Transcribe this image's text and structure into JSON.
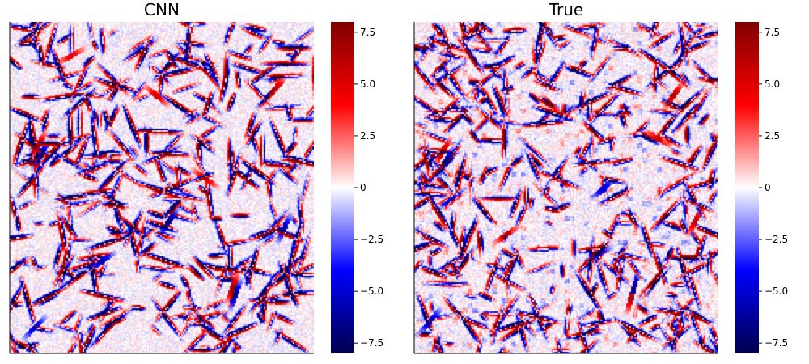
{
  "chart_data": [
    {
      "type": "heatmap",
      "title": "CNN",
      "colormap": "seismic",
      "colors": [
        "#00004d",
        "#0000ff",
        "#ffffff",
        "#ff0000",
        "#800000"
      ],
      "clim": [
        -8.0,
        8.0
      ],
      "colorbar_ticks": [
        -7.5,
        -5.0,
        -2.5,
        0,
        2.5,
        5.0,
        7.5
      ],
      "colorbar_tick_labels": [
        "−7.5",
        "−5.0",
        "−2.5",
        "0",
        "2.5",
        "5.0",
        "7.5"
      ],
      "grid": false,
      "field_description": "turbulent-like field with dense thin red/blue filaments over a pale background",
      "streaks": [
        {
          "x": 0.1,
          "y": 0.4,
          "angle": 60,
          "value": -7.0
        },
        {
          "x": 0.09,
          "y": 0.37,
          "angle": 60,
          "value": 6.5
        },
        {
          "x": 0.52,
          "y": 0.6,
          "angle": 55,
          "value": -7.2
        },
        {
          "x": 0.74,
          "y": 0.82,
          "angle": 70,
          "value": -6.8
        },
        {
          "x": 0.73,
          "y": 0.8,
          "angle": 70,
          "value": 6.9
        },
        {
          "x": 0.48,
          "y": 0.22,
          "angle": -40,
          "value": 5.5
        },
        {
          "x": 0.3,
          "y": 0.72,
          "angle": 35,
          "value": -5.8
        },
        {
          "x": 0.87,
          "y": 0.2,
          "angle": 50,
          "value": 6.2
        },
        {
          "x": 0.9,
          "y": 0.62,
          "angle": 65,
          "value": -6.0
        },
        {
          "x": 0.2,
          "y": 0.1,
          "angle": 30,
          "value": 5.0
        },
        {
          "x": 0.64,
          "y": 0.47,
          "angle": -35,
          "value": 5.8
        },
        {
          "x": 0.08,
          "y": 0.92,
          "angle": 45,
          "value": -5.6
        }
      ]
    },
    {
      "type": "heatmap",
      "title": "True",
      "colormap": "seismic",
      "colors": [
        "#00004d",
        "#0000ff",
        "#ffffff",
        "#ff0000",
        "#800000"
      ],
      "clim": [
        -8.0,
        8.0
      ],
      "colorbar_ticks": [
        -7.5,
        -5.0,
        -2.5,
        0,
        2.5,
        5.0,
        7.5
      ],
      "colorbar_tick_labels": [
        "−7.5",
        "−5.0",
        "−2.5",
        "0",
        "2.5",
        "5.0",
        "7.5"
      ],
      "grid": false,
      "field_description": "turbulent-like field with filaments plus pixelated blocky noise over a pale background",
      "streaks": [
        {
          "x": 0.1,
          "y": 0.42,
          "angle": 60,
          "value": -7.3
        },
        {
          "x": 0.09,
          "y": 0.39,
          "angle": 60,
          "value": 7.0
        },
        {
          "x": 0.72,
          "y": 0.8,
          "angle": 75,
          "value": -7.5
        },
        {
          "x": 0.71,
          "y": 0.83,
          "angle": 75,
          "value": 6.6
        },
        {
          "x": 0.85,
          "y": 0.22,
          "angle": 55,
          "value": 6.4
        },
        {
          "x": 0.8,
          "y": 0.35,
          "angle": -30,
          "value": 5.9
        },
        {
          "x": 0.62,
          "y": 0.5,
          "angle": 40,
          "value": -5.5
        },
        {
          "x": 0.3,
          "y": 0.64,
          "angle": 35,
          "value": 5.7
        },
        {
          "x": 0.05,
          "y": 0.9,
          "angle": 50,
          "value": -6.2
        },
        {
          "x": 0.45,
          "y": 0.25,
          "angle": -45,
          "value": 5.2
        },
        {
          "x": 0.6,
          "y": 0.7,
          "angle": 30,
          "value": -5.9
        },
        {
          "x": 0.92,
          "y": 0.6,
          "angle": 65,
          "value": 6.1
        }
      ]
    }
  ]
}
